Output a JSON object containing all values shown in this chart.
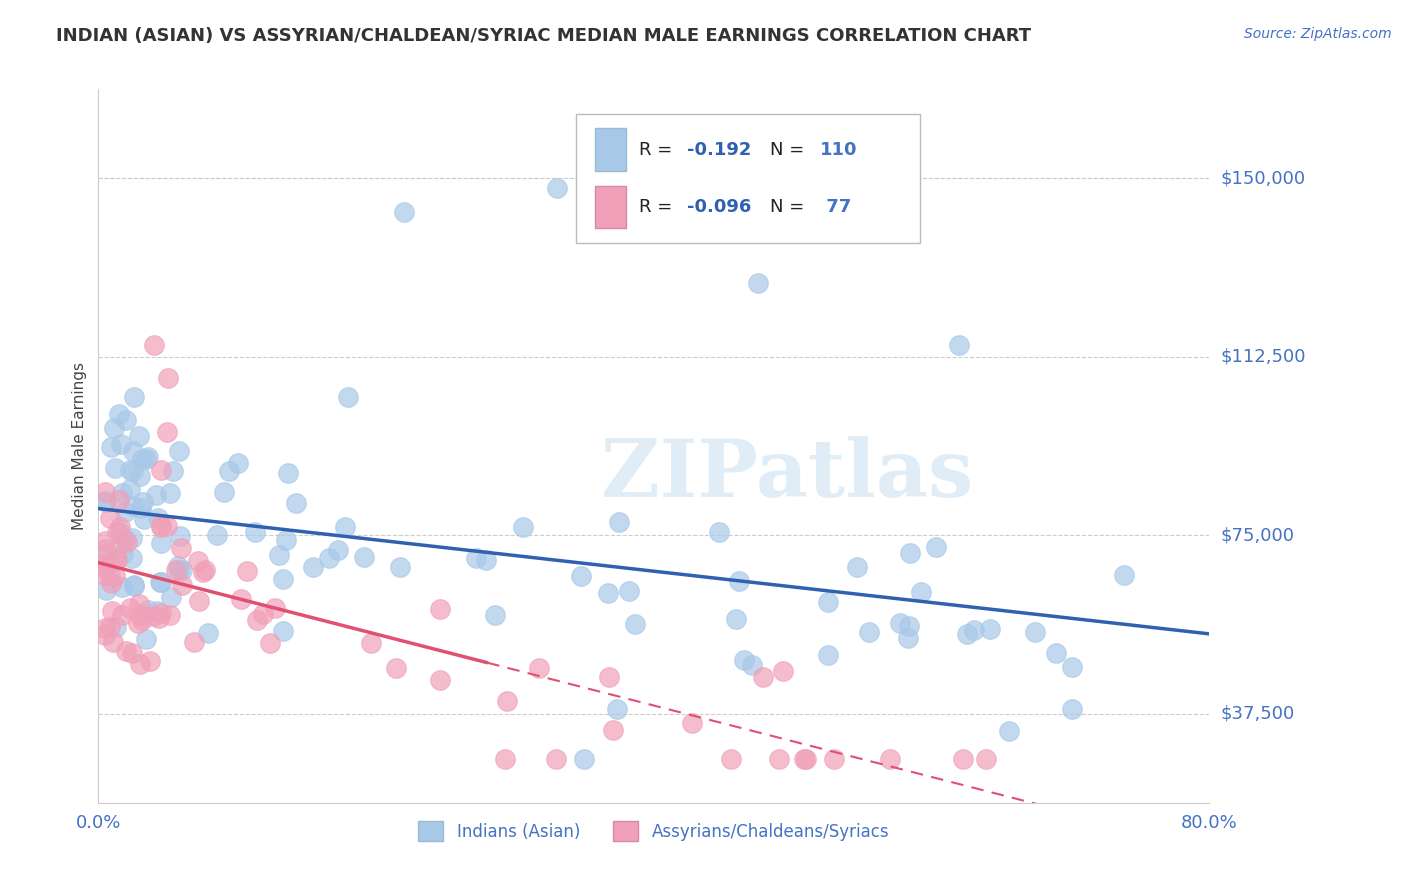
{
  "title": "INDIAN (ASIAN) VS ASSYRIAN/CHALDEAN/SYRIAC MEDIAN MALE EARNINGS CORRELATION CHART",
  "source": "Source: ZipAtlas.com",
  "ylabel": "Median Male Earnings",
  "xlim": [
    0.0,
    0.8
  ],
  "ylim": [
    18750,
    168750
  ],
  "yticks": [
    37500,
    75000,
    112500,
    150000
  ],
  "ytick_labels": [
    "$37,500",
    "$75,000",
    "$112,500",
    "$150,000"
  ],
  "grid_color": "#cccccc",
  "background_color": "#ffffff",
  "blue_color": "#a8c8e8",
  "pink_color": "#f0a0b8",
  "blue_line_color": "#3060b0",
  "pink_line_color": "#e05070",
  "R_blue": -0.192,
  "N_blue": 110,
  "R_pink": -0.096,
  "N_pink": 77,
  "watermark": "ZIPatlas",
  "title_color": "#333333",
  "tick_label_color": "#4472c4",
  "legend2_blue": "Indians (Asian)",
  "legend2_pink": "Assyrians/Chaldeans/Syriacs"
}
